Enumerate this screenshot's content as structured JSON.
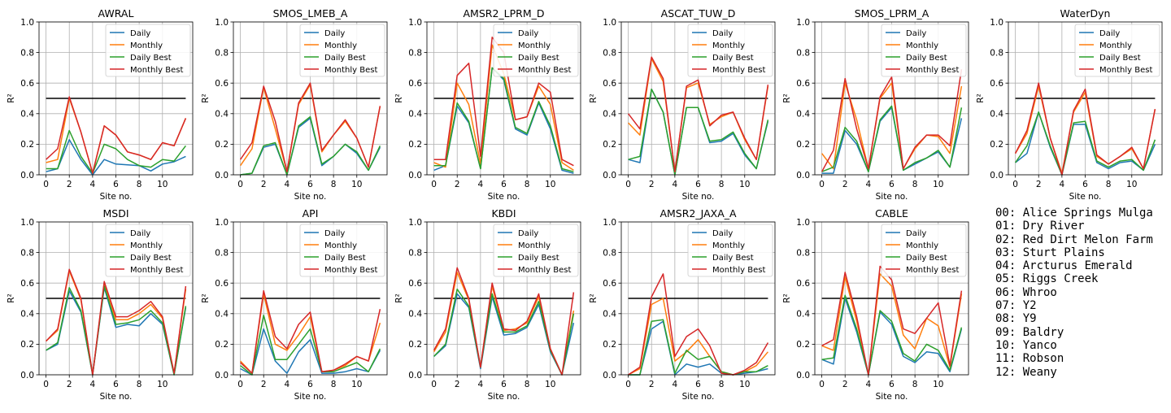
{
  "figure": {
    "xlabel": "Site no.",
    "ylabel": "R²",
    "threshold": 0.5,
    "xlim": [
      -0.6,
      12.6
    ],
    "ylim": [
      0,
      1.0
    ],
    "xticks": [
      0,
      2,
      4,
      6,
      8,
      10
    ],
    "yticks": [
      0.0,
      0.2,
      0.4,
      0.6,
      0.8,
      1.0
    ],
    "colors": {
      "Daily": "#1f77b4",
      "Monthly": "#ff7f0e",
      "Daily Best": "#2ca02c",
      "Monthly Best": "#d62728",
      "threshold": "#000000"
    },
    "legend_loc": "upper right",
    "grid": true
  },
  "site_legend": [
    "00: Alice Springs Mulga",
    "01: Dry River",
    "02: Red Dirt Melon Farm",
    "03: Sturt Plains",
    "04: Arcturus Emerald",
    "05: Riggs Creek",
    "06: Whroo",
    "07: Y2",
    "08: Y9",
    "09: Baldry",
    "10: Yanco",
    "11: Robson",
    "12: Weany"
  ],
  "chart_data": [
    {
      "type": "line",
      "title": "AWRAL",
      "x": [
        0,
        1,
        2,
        3,
        4,
        5,
        6,
        7,
        8,
        9,
        10,
        11,
        12
      ],
      "series": [
        {
          "name": "Daily",
          "values": [
            0.02,
            0.04,
            0.23,
            0.1,
            0.0,
            0.1,
            0.07,
            0.065,
            0.06,
            0.025,
            0.07,
            0.085,
            0.12
          ]
        },
        {
          "name": "Monthly",
          "values": [
            0.08,
            0.1,
            0.5,
            0.28,
            0.01,
            0.32,
            0.26,
            0.15,
            0.13,
            0.1,
            0.21,
            0.19,
            0.37
          ]
        },
        {
          "name": "Daily Best",
          "values": [
            0.04,
            0.04,
            0.29,
            0.12,
            0.01,
            0.2,
            0.17,
            0.1,
            0.06,
            0.05,
            0.1,
            0.09,
            0.19
          ]
        },
        {
          "name": "Monthly Best",
          "values": [
            0.1,
            0.17,
            0.51,
            0.28,
            0.01,
            0.32,
            0.26,
            0.15,
            0.13,
            0.1,
            0.21,
            0.19,
            0.37
          ]
        }
      ]
    },
    {
      "type": "line",
      "title": "SMOS_LMEB_A",
      "x": [
        0,
        1,
        2,
        3,
        4,
        5,
        6,
        7,
        8,
        9,
        10,
        11,
        12
      ],
      "series": [
        {
          "name": "Daily",
          "values": [
            0.0,
            0.01,
            0.18,
            0.2,
            0.0,
            0.31,
            0.37,
            0.06,
            0.12,
            0.2,
            0.14,
            0.03,
            0.18
          ]
        },
        {
          "name": "Monthly",
          "values": [
            0.06,
            0.17,
            0.57,
            0.3,
            0.02,
            0.46,
            0.59,
            0.15,
            0.26,
            0.35,
            0.24,
            0.05,
            0.45
          ]
        },
        {
          "name": "Daily Best",
          "values": [
            0.0,
            0.01,
            0.19,
            0.21,
            0.0,
            0.32,
            0.38,
            0.07,
            0.12,
            0.2,
            0.15,
            0.03,
            0.19
          ]
        },
        {
          "name": "Monthly Best",
          "values": [
            0.1,
            0.21,
            0.58,
            0.35,
            0.02,
            0.47,
            0.6,
            0.16,
            0.26,
            0.36,
            0.24,
            0.05,
            0.45
          ]
        }
      ]
    },
    {
      "type": "line",
      "title": "AMSR2_LPRM_D",
      "x": [
        0,
        1,
        2,
        3,
        4,
        5,
        6,
        7,
        8,
        9,
        10,
        11,
        12
      ],
      "series": [
        {
          "name": "Daily",
          "values": [
            0.03,
            0.06,
            0.45,
            0.34,
            0.04,
            0.7,
            0.62,
            0.3,
            0.26,
            0.47,
            0.3,
            0.03,
            0.01
          ]
        },
        {
          "name": "Monthly",
          "values": [
            0.08,
            0.05,
            0.6,
            0.46,
            0.07,
            0.85,
            0.66,
            0.36,
            0.38,
            0.58,
            0.46,
            0.08,
            0.03
          ]
        },
        {
          "name": "Daily Best",
          "values": [
            0.06,
            0.06,
            0.47,
            0.35,
            0.04,
            0.7,
            0.63,
            0.31,
            0.27,
            0.48,
            0.32,
            0.04,
            0.02
          ]
        },
        {
          "name": "Monthly Best",
          "values": [
            0.1,
            0.1,
            0.65,
            0.73,
            0.12,
            0.9,
            0.8,
            0.36,
            0.38,
            0.6,
            0.54,
            0.1,
            0.06
          ]
        }
      ]
    },
    {
      "type": "line",
      "title": "ASCAT_TUW_D",
      "x": [
        0,
        1,
        2,
        3,
        4,
        5,
        6,
        7,
        8,
        9,
        10,
        11,
        12
      ],
      "series": [
        {
          "name": "Daily",
          "values": [
            0.1,
            0.08,
            0.56,
            0.41,
            0.0,
            0.44,
            0.44,
            0.21,
            0.22,
            0.27,
            0.13,
            0.04,
            0.35
          ]
        },
        {
          "name": "Monthly",
          "values": [
            0.34,
            0.26,
            0.76,
            0.61,
            0.02,
            0.57,
            0.6,
            0.33,
            0.38,
            0.41,
            0.23,
            0.1,
            0.58
          ]
        },
        {
          "name": "Daily Best",
          "values": [
            0.1,
            0.12,
            0.56,
            0.41,
            0.0,
            0.44,
            0.44,
            0.22,
            0.23,
            0.28,
            0.14,
            0.04,
            0.36
          ]
        },
        {
          "name": "Monthly Best",
          "values": [
            0.4,
            0.3,
            0.77,
            0.63,
            0.02,
            0.58,
            0.62,
            0.32,
            0.39,
            0.41,
            0.24,
            0.1,
            0.59
          ]
        }
      ]
    },
    {
      "type": "line",
      "title": "SMOS_LPRM_A",
      "x": [
        0,
        1,
        2,
        3,
        4,
        5,
        6,
        7,
        8,
        9,
        10,
        11,
        12
      ],
      "series": [
        {
          "name": "Daily",
          "values": [
            0.01,
            0.01,
            0.29,
            0.2,
            0.02,
            0.35,
            0.44,
            0.03,
            0.07,
            0.11,
            0.15,
            0.05,
            0.37
          ]
        },
        {
          "name": "Monthly",
          "values": [
            0.14,
            0.04,
            0.6,
            0.36,
            0.04,
            0.5,
            0.6,
            0.04,
            0.17,
            0.26,
            0.25,
            0.14,
            0.58
          ]
        },
        {
          "name": "Daily Best",
          "values": [
            0.02,
            0.05,
            0.31,
            0.22,
            0.02,
            0.36,
            0.45,
            0.03,
            0.08,
            0.11,
            0.16,
            0.05,
            0.44
          ]
        },
        {
          "name": "Monthly Best",
          "values": [
            0.02,
            0.16,
            0.63,
            0.3,
            0.04,
            0.51,
            0.64,
            0.04,
            0.18,
            0.26,
            0.26,
            0.19,
            0.69
          ]
        }
      ]
    },
    {
      "type": "line",
      "title": "WaterDyn",
      "x": [
        0,
        1,
        2,
        3,
        4,
        5,
        6,
        7,
        8,
        9,
        10,
        11,
        12
      ],
      "series": [
        {
          "name": "Daily",
          "values": [
            0.08,
            0.14,
            0.41,
            0.18,
            0.0,
            0.33,
            0.33,
            0.08,
            0.04,
            0.08,
            0.09,
            0.03,
            0.2
          ]
        },
        {
          "name": "Monthly",
          "values": [
            0.14,
            0.27,
            0.58,
            0.24,
            0.01,
            0.41,
            0.54,
            0.12,
            0.07,
            0.12,
            0.17,
            0.04,
            0.43
          ]
        },
        {
          "name": "Daily Best",
          "values": [
            0.08,
            0.19,
            0.41,
            0.19,
            0.0,
            0.34,
            0.35,
            0.09,
            0.05,
            0.09,
            0.1,
            0.03,
            0.23
          ]
        },
        {
          "name": "Monthly Best",
          "values": [
            0.14,
            0.29,
            0.6,
            0.24,
            0.0,
            0.42,
            0.56,
            0.13,
            0.07,
            0.12,
            0.18,
            0.04,
            0.43
          ]
        }
      ]
    },
    {
      "type": "line",
      "title": "MSDI",
      "x": [
        0,
        1,
        2,
        3,
        4,
        5,
        6,
        7,
        8,
        9,
        10,
        11,
        12
      ],
      "series": [
        {
          "name": "Daily",
          "values": [
            0.16,
            0.2,
            0.55,
            0.41,
            0.0,
            0.57,
            0.31,
            0.33,
            0.32,
            0.4,
            0.33,
            0.0,
            0.44
          ]
        },
        {
          "name": "Monthly",
          "values": [
            0.22,
            0.29,
            0.68,
            0.49,
            0.0,
            0.6,
            0.36,
            0.36,
            0.4,
            0.46,
            0.37,
            0.01,
            0.56
          ]
        },
        {
          "name": "Daily Best",
          "values": [
            0.16,
            0.21,
            0.57,
            0.42,
            0.0,
            0.58,
            0.33,
            0.34,
            0.36,
            0.42,
            0.34,
            0.0,
            0.45
          ]
        },
        {
          "name": "Monthly Best",
          "values": [
            0.22,
            0.3,
            0.69,
            0.5,
            0.0,
            0.61,
            0.38,
            0.38,
            0.42,
            0.48,
            0.38,
            0.01,
            0.58
          ]
        }
      ]
    },
    {
      "type": "line",
      "title": "API",
      "x": [
        0,
        1,
        2,
        3,
        4,
        5,
        6,
        7,
        8,
        9,
        10,
        11,
        12
      ],
      "series": [
        {
          "name": "Daily",
          "values": [
            0.04,
            0.0,
            0.3,
            0.09,
            0.01,
            0.15,
            0.23,
            0.01,
            0.01,
            0.02,
            0.04,
            0.02,
            0.16
          ]
        },
        {
          "name": "Monthly",
          "values": [
            0.09,
            0.01,
            0.53,
            0.2,
            0.16,
            0.26,
            0.38,
            0.02,
            0.03,
            0.06,
            0.12,
            0.09,
            0.34
          ]
        },
        {
          "name": "Daily Best",
          "values": [
            0.06,
            0.0,
            0.39,
            0.1,
            0.1,
            0.2,
            0.3,
            0.02,
            0.02,
            0.05,
            0.08,
            0.02,
            0.17
          ]
        },
        {
          "name": "Monthly Best",
          "values": [
            0.08,
            0.01,
            0.55,
            0.25,
            0.17,
            0.33,
            0.41,
            0.02,
            0.03,
            0.07,
            0.12,
            0.09,
            0.43
          ]
        }
      ]
    },
    {
      "type": "line",
      "title": "KBDI",
      "x": [
        0,
        1,
        2,
        3,
        4,
        5,
        6,
        7,
        8,
        9,
        10,
        11,
        12
      ],
      "series": [
        {
          "name": "Daily",
          "values": [
            0.12,
            0.19,
            0.53,
            0.44,
            0.04,
            0.51,
            0.26,
            0.27,
            0.31,
            0.46,
            0.15,
            0.0,
            0.34
          ]
        },
        {
          "name": "Monthly",
          "values": [
            0.15,
            0.28,
            0.67,
            0.49,
            0.05,
            0.58,
            0.29,
            0.3,
            0.34,
            0.51,
            0.17,
            0.0,
            0.42
          ]
        },
        {
          "name": "Daily Best",
          "values": [
            0.12,
            0.2,
            0.56,
            0.45,
            0.05,
            0.53,
            0.28,
            0.28,
            0.32,
            0.48,
            0.16,
            0.0,
            0.4
          ]
        },
        {
          "name": "Monthly Best",
          "values": [
            0.16,
            0.3,
            0.7,
            0.5,
            0.05,
            0.6,
            0.3,
            0.29,
            0.35,
            0.53,
            0.17,
            0.0,
            0.54
          ]
        }
      ]
    },
    {
      "type": "line",
      "title": "AMSR2_JAXA_A",
      "x": [
        0,
        1,
        2,
        3,
        4,
        5,
        6,
        7,
        8,
        9,
        10,
        11,
        12
      ],
      "series": [
        {
          "name": "Daily",
          "values": [
            0.0,
            0.0,
            0.3,
            0.35,
            0.0,
            0.07,
            0.05,
            0.07,
            0.01,
            0.0,
            0.01,
            0.02,
            0.04
          ]
        },
        {
          "name": "Monthly",
          "values": [
            0.0,
            0.04,
            0.46,
            0.5,
            0.09,
            0.15,
            0.23,
            0.12,
            0.02,
            0.0,
            0.02,
            0.06,
            0.15
          ]
        },
        {
          "name": "Daily Best",
          "values": [
            0.0,
            0.0,
            0.35,
            0.36,
            0.01,
            0.16,
            0.1,
            0.12,
            0.02,
            0.0,
            0.02,
            0.02,
            0.06
          ]
        },
        {
          "name": "Monthly Best",
          "values": [
            0.0,
            0.05,
            0.51,
            0.66,
            0.12,
            0.25,
            0.3,
            0.19,
            0.01,
            0.0,
            0.03,
            0.08,
            0.21
          ]
        }
      ]
    },
    {
      "type": "line",
      "title": "CABLE",
      "x": [
        0,
        1,
        2,
        3,
        4,
        5,
        6,
        7,
        8,
        9,
        10,
        11,
        12
      ],
      "series": [
        {
          "name": "Daily",
          "values": [
            0.1,
            0.07,
            0.5,
            0.28,
            0.0,
            0.41,
            0.33,
            0.12,
            0.08,
            0.15,
            0.14,
            0.02,
            0.3
          ]
        },
        {
          "name": "Monthly",
          "values": [
            0.19,
            0.16,
            0.64,
            0.35,
            0.0,
            0.66,
            0.58,
            0.26,
            0.17,
            0.37,
            0.32,
            0.05,
            0.53
          ]
        },
        {
          "name": "Daily Best",
          "values": [
            0.1,
            0.11,
            0.52,
            0.3,
            0.0,
            0.42,
            0.35,
            0.14,
            0.09,
            0.2,
            0.16,
            0.03,
            0.31
          ]
        },
        {
          "name": "Monthly Best",
          "values": [
            0.19,
            0.23,
            0.67,
            0.38,
            0.0,
            0.71,
            0.62,
            0.3,
            0.27,
            0.37,
            0.47,
            0.06,
            0.55
          ]
        }
      ]
    }
  ]
}
